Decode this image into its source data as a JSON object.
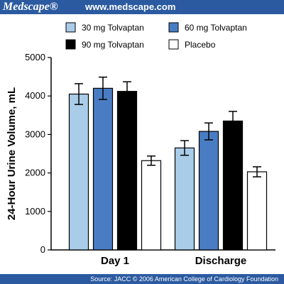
{
  "header": {
    "brand": "Medscape®",
    "url": "www.medscape.com"
  },
  "footer": {
    "source": "Source: JACC © 2006 American College of Cardiology Foundation"
  },
  "colors": {
    "banner": "#2b5aa0",
    "series": [
      "#a9cce9",
      "#4a7cc4",
      "#000000",
      "#ffffff"
    ]
  },
  "chart_data": {
    "type": "bar",
    "categories": [
      "Day 1",
      "Discharge"
    ],
    "ylabel": "24-Hour Urine Volume, mL",
    "ylim": [
      0,
      5000
    ],
    "yticks": [
      0,
      1000,
      2000,
      3000,
      4000,
      5000
    ],
    "grid": false,
    "legend_position": "top",
    "series": [
      {
        "name": "30 mg Tolvaptan",
        "color": "#a9cce9",
        "values": [
          4050,
          2650
        ],
        "errors": [
          270,
          190
        ]
      },
      {
        "name": "60 mg Tolvaptan",
        "color": "#4a7cc4",
        "values": [
          4200,
          3080
        ],
        "errors": [
          290,
          220
        ]
      },
      {
        "name": "90 mg Tolvaptan",
        "color": "#000000",
        "values": [
          4120,
          3350
        ],
        "errors": [
          250,
          250
        ]
      },
      {
        "name": "Placebo",
        "color": "#ffffff",
        "values": [
          2320,
          2030
        ],
        "errors": [
          120,
          130
        ]
      }
    ]
  }
}
